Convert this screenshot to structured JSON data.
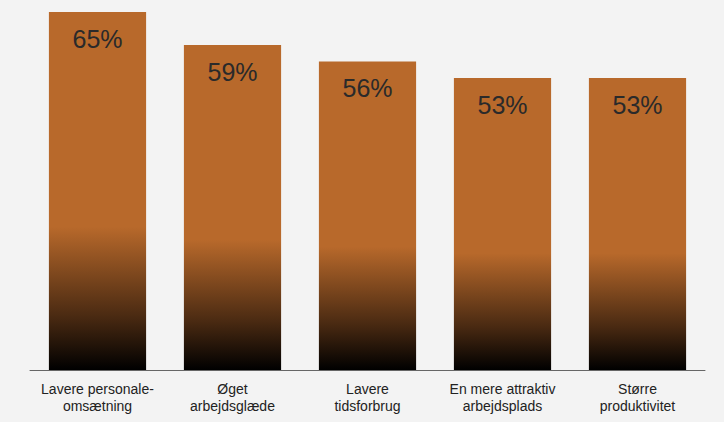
{
  "chart_data": {
    "type": "bar",
    "categories": [
      "Lavere personale-\nomsætning",
      "Øget\narbejdsglæde",
      "Lavere\ntidsforbrug",
      "En mere attraktiv\narbejdsplads",
      "Større\nproduktivitet"
    ],
    "values": [
      65,
      59,
      56,
      53,
      53
    ],
    "value_labels": [
      "65%",
      "59%",
      "56%",
      "53%",
      "53%"
    ],
    "color": "#b8692b",
    "ylim": [
      0,
      65
    ],
    "grid": false,
    "data_labels": true,
    "tick_labels": "x"
  }
}
